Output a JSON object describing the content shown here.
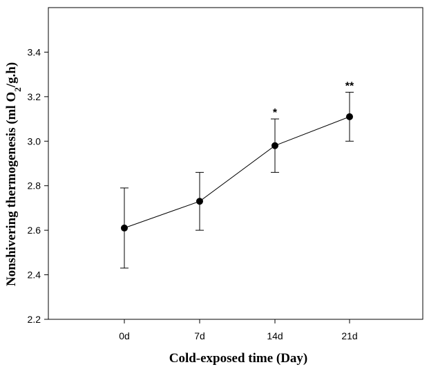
{
  "chart_data": {
    "type": "line",
    "title": "",
    "xlabel": "Cold-exposed time (Day)",
    "ylabel": {
      "main": "Nonshivering thermogenesis (ml O",
      "sub": "2",
      "tail": "/g.h)"
    },
    "categories": [
      "0d",
      "7d",
      "14d",
      "21d"
    ],
    "series": [
      {
        "values": [
          2.61,
          2.73,
          2.98,
          3.11
        ],
        "error_upper": [
          2.79,
          2.86,
          3.1,
          3.22
        ],
        "error_lower": [
          2.43,
          2.6,
          2.86,
          3.0
        ],
        "annotations": [
          "",
          "",
          "*",
          "**"
        ]
      }
    ],
    "ylim": [
      2.2,
      3.6
    ],
    "yticks": [
      "2.2",
      "2.4",
      "2.6",
      "2.8",
      "3.0",
      "3.2",
      "3.4"
    ],
    "ytick_values": [
      2.2,
      2.4,
      2.6,
      2.8,
      3.0,
      3.2,
      3.4
    ],
    "grid": false,
    "legend": "none",
    "colors": {
      "line": "#000000",
      "marker": "#000000"
    }
  }
}
